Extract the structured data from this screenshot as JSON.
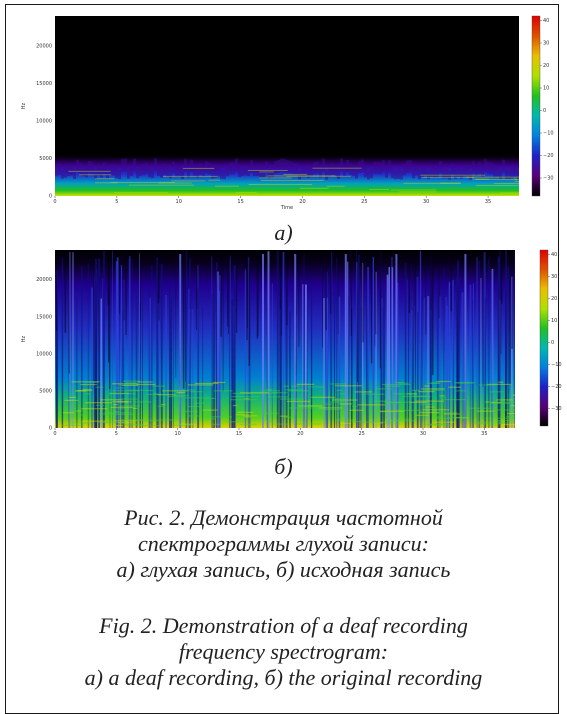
{
  "figure": {
    "panels": [
      {
        "label": "а)",
        "y_label": "Hz",
        "x_label": "Time",
        "x_ticks": [
          "0",
          "5",
          "10",
          "15",
          "20",
          "25",
          "30",
          "35"
        ],
        "y_ticks": [
          "0",
          "5000",
          "10000",
          "15000",
          "20000"
        ],
        "colorbar_ticks": [
          "40",
          "30",
          "20",
          "10",
          "0",
          "−10",
          "−20",
          "−30"
        ]
      },
      {
        "label": "б)",
        "y_label": "Hz",
        "x_label": "",
        "x_ticks": [
          "0",
          "5",
          "10",
          "15",
          "20",
          "25",
          "30",
          "35"
        ],
        "y_ticks": [
          "0",
          "5000",
          "10000",
          "15000",
          "20000"
        ],
        "colorbar_ticks": [
          "40",
          "30",
          "20",
          "10",
          "0",
          "−10",
          "−20",
          "−30"
        ]
      }
    ],
    "caption_ru": [
      "Рис. 2. Демонстрация частотной",
      "спектрограммы глухой записи:",
      "а) глухая запись, б) исходная запись"
    ],
    "caption_en": [
      "Fig. 2. Demonstration of a deaf recording",
      "frequency spectrogram:",
      "a) a deaf recording, б) the original recording"
    ]
  },
  "colors": {
    "background": "#000000",
    "colormap": [
      "#000000",
      "#5a0078",
      "#2020c8",
      "#0080e0",
      "#00b8b0",
      "#20c020",
      "#b0e000",
      "#e8c000",
      "#e05000",
      "#e00000"
    ]
  }
}
